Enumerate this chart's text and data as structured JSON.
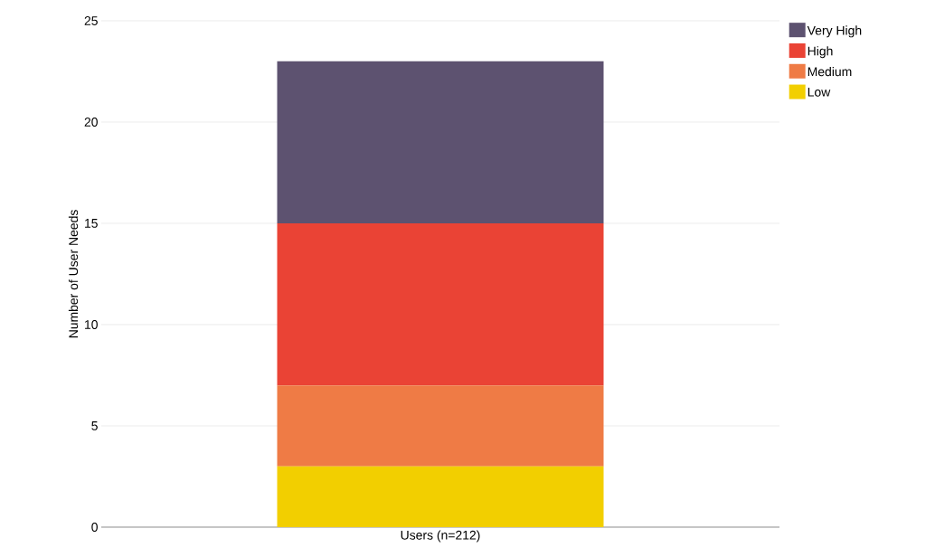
{
  "chart_data": {
    "type": "bar",
    "stacked": true,
    "categories": [
      "Users (n=212)"
    ],
    "ylabel": "Number of User Needs",
    "ylim": [
      0,
      25
    ],
    "yticks": [
      0,
      5,
      10,
      15,
      20,
      25
    ],
    "grid": "y",
    "legend": "top right",
    "series": [
      {
        "name": "Low",
        "color": "#f2cf00",
        "values": [
          3
        ]
      },
      {
        "name": "Medium",
        "color": "#ef7b45",
        "values": [
          4
        ]
      },
      {
        "name": "High",
        "color": "#ea4335",
        "values": [
          8
        ]
      },
      {
        "name": "Very High",
        "color": "#5d5270",
        "values": [
          8
        ]
      }
    ]
  }
}
